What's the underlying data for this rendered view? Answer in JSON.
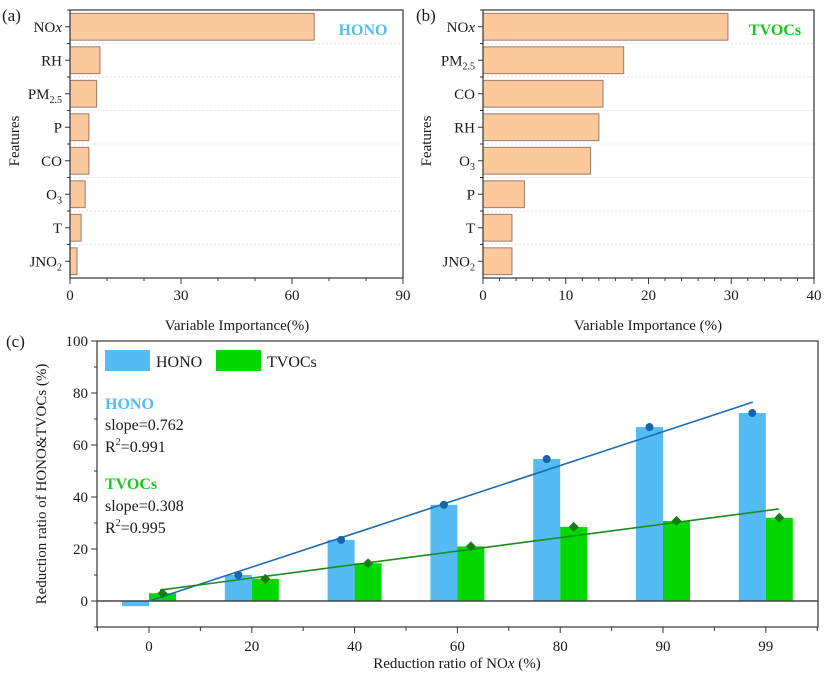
{
  "colors": {
    "hbar_fill": "#FCC99C",
    "hbar_stroke": "#9C7A6A",
    "hono": "#55BBF5",
    "tvocs": "#00D800",
    "hono_marker": "#1565A8",
    "tvocs_marker": "#167A16",
    "hono_fit": "#1F6AAE",
    "tvocs_fit": "#1E8A1E",
    "hono_title": "#55BBF5",
    "tvocs_title": "#1CC71C",
    "grid": "#d9d9d9",
    "axis": "#333333"
  },
  "chart_data": [
    {
      "id": "a",
      "panel_label": "(a)",
      "type": "bar",
      "orientation": "horizontal",
      "title": "HONO",
      "title_color_key": "hono_title",
      "ylabel": "Features",
      "xlabel": "Variable Importance(%)",
      "xlim": [
        0,
        90
      ],
      "xticks": [
        0,
        30,
        60,
        90
      ],
      "xminor": 10,
      "grid": true,
      "categories": [
        {
          "base": "NO",
          "sub": "",
          "italic": "x"
        },
        {
          "base": "RH",
          "sub": "",
          "italic": ""
        },
        {
          "base": "PM",
          "sub": "2.5",
          "italic": ""
        },
        {
          "base": "P",
          "sub": "",
          "italic": ""
        },
        {
          "base": "CO",
          "sub": "",
          "italic": ""
        },
        {
          "base": "O",
          "sub": "3",
          "italic": ""
        },
        {
          "base": "T",
          "sub": "",
          "italic": ""
        },
        {
          "base": "JNO",
          "sub": "2",
          "italic": ""
        }
      ],
      "values": [
        66.0,
        8.1,
        7.2,
        5.1,
        5.1,
        4.1,
        3.0,
        1.9
      ]
    },
    {
      "id": "b",
      "panel_label": "(b)",
      "type": "bar",
      "orientation": "horizontal",
      "title": "TVOCs",
      "title_color_key": "tvocs_title",
      "ylabel": "Features",
      "xlabel": "Variable Importance (%)",
      "xlim": [
        0,
        40
      ],
      "xticks": [
        0,
        10,
        20,
        30,
        40
      ],
      "xminor": 2,
      "grid": true,
      "categories": [
        {
          "base": "NO",
          "sub": "",
          "italic": "x"
        },
        {
          "base": "PM",
          "sub": "2.5",
          "italic": ""
        },
        {
          "base": "CO",
          "sub": "",
          "italic": ""
        },
        {
          "base": "RH",
          "sub": "",
          "italic": ""
        },
        {
          "base": "O",
          "sub": "3",
          "italic": ""
        },
        {
          "base": "P",
          "sub": "",
          "italic": ""
        },
        {
          "base": "T",
          "sub": "",
          "italic": ""
        },
        {
          "base": "JNO",
          "sub": "2",
          "italic": ""
        }
      ],
      "values": [
        29.6,
        17.0,
        14.5,
        14.0,
        13.0,
        5.0,
        3.5,
        3.5
      ]
    },
    {
      "id": "c",
      "panel_label": "(c)",
      "type": "bar",
      "title": "",
      "xlabel_base": "Reduction ratio of NO",
      "xlabel_italic": "x",
      "xlabel_tail": " (%)",
      "ylabel": "Reduction ratio of HONO&TVOCs (%)",
      "ylim": [
        -10,
        100
      ],
      "yticks": [
        0,
        20,
        40,
        60,
        80,
        100
      ],
      "yminor": 10,
      "categories": [
        "0",
        "20",
        "40",
        "60",
        "80",
        "90",
        "99"
      ],
      "legend": {
        "position": "top-left",
        "entries": [
          "HONO",
          "TVOCs"
        ]
      },
      "series": [
        {
          "name": "HONO",
          "type": "bar",
          "values": [
            -2.0,
            10.0,
            23.5,
            37.0,
            54.6,
            66.9,
            72.3
          ],
          "color_key": "hono"
        },
        {
          "name": "TVOCs",
          "type": "bar",
          "values": [
            3.0,
            8.5,
            14.5,
            21.0,
            28.5,
            30.8,
            32.0
          ],
          "color_key": "tvocs"
        }
      ],
      "markers": [
        {
          "name": "HONO points",
          "shape": "circle",
          "values": [
            -2.0,
            10.0,
            23.5,
            37.0,
            54.6,
            66.9,
            72.3
          ],
          "color_key": "hono_marker"
        },
        {
          "name": "TVOCs points",
          "shape": "diamond",
          "values": [
            3.0,
            8.5,
            14.5,
            21.0,
            28.5,
            30.8,
            32.0
          ],
          "color_key": "tvocs_marker"
        }
      ],
      "fits": [
        {
          "name": "HONO fit",
          "slope": 0.762,
          "r2": 0.991,
          "start": 0.0,
          "end": 76.5,
          "color_key": "hono_fit"
        },
        {
          "name": "TVOCs fit",
          "slope": 0.308,
          "r2": 0.995,
          "start": 4.2,
          "end": 35.4,
          "color_key": "tvocs_fit"
        }
      ],
      "annotations": [
        {
          "title": "HONO",
          "slope_text": "slope=0.762",
          "r2_value": "=0.991",
          "color_key": "hono_title"
        },
        {
          "title": "TVOCs",
          "slope_text": "slope=0.308",
          "r2_value": "=0.995",
          "color_key": "tvocs_title"
        }
      ]
    }
  ]
}
